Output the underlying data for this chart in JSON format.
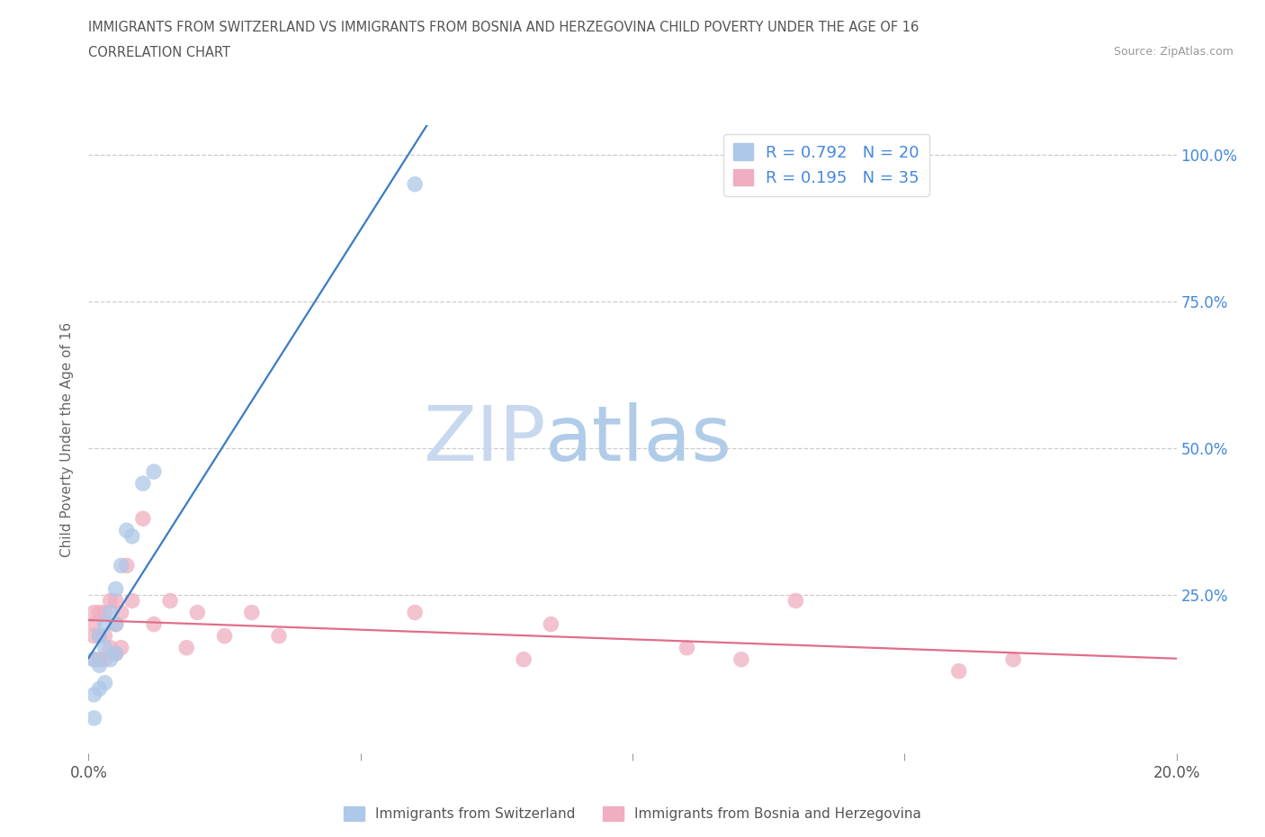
{
  "title_line1": "IMMIGRANTS FROM SWITZERLAND VS IMMIGRANTS FROM BOSNIA AND HERZEGOVINA CHILD POVERTY UNDER THE AGE OF 16",
  "title_line2": "CORRELATION CHART",
  "source": "Source: ZipAtlas.com",
  "ylabel": "Child Poverty Under the Age of 16",
  "watermark_zip": "ZIP",
  "watermark_atlas": "atlas",
  "xlim": [
    0.0,
    0.2
  ],
  "ylim": [
    -0.02,
    1.05
  ],
  "legend1_label": "Immigrants from Switzerland",
  "legend2_label": "Immigrants from Bosnia and Herzegovina",
  "r1": 0.792,
  "n1": 20,
  "r2": 0.195,
  "n2": 35,
  "color_swiss": "#adc8e8",
  "color_bosnia": "#f0aec0",
  "line_swiss": "#3a7cc4",
  "line_bosnia": "#e06e8a",
  "swiss_x": [
    0.001,
    0.001,
    0.001,
    0.002,
    0.002,
    0.002,
    0.003,
    0.003,
    0.003,
    0.004,
    0.004,
    0.005,
    0.005,
    0.005,
    0.006,
    0.007,
    0.008,
    0.01,
    0.012,
    0.06
  ],
  "swiss_y": [
    0.04,
    0.08,
    0.14,
    0.09,
    0.13,
    0.18,
    0.1,
    0.16,
    0.2,
    0.14,
    0.22,
    0.15,
    0.2,
    0.26,
    0.3,
    0.36,
    0.35,
    0.44,
    0.46,
    0.95
  ],
  "bosnia_x": [
    0.001,
    0.001,
    0.001,
    0.001,
    0.002,
    0.002,
    0.002,
    0.003,
    0.003,
    0.003,
    0.004,
    0.004,
    0.005,
    0.005,
    0.005,
    0.006,
    0.006,
    0.007,
    0.008,
    0.01,
    0.012,
    0.015,
    0.018,
    0.02,
    0.025,
    0.03,
    0.035,
    0.06,
    0.08,
    0.085,
    0.11,
    0.12,
    0.13,
    0.16,
    0.17
  ],
  "bosnia_y": [
    0.14,
    0.18,
    0.2,
    0.22,
    0.14,
    0.18,
    0.22,
    0.14,
    0.18,
    0.22,
    0.16,
    0.24,
    0.15,
    0.2,
    0.24,
    0.16,
    0.22,
    0.3,
    0.24,
    0.38,
    0.2,
    0.24,
    0.16,
    0.22,
    0.18,
    0.22,
    0.18,
    0.22,
    0.14,
    0.2,
    0.16,
    0.14,
    0.24,
    0.12,
    0.14
  ],
  "background_color": "#ffffff",
  "grid_color": "#cccccc"
}
